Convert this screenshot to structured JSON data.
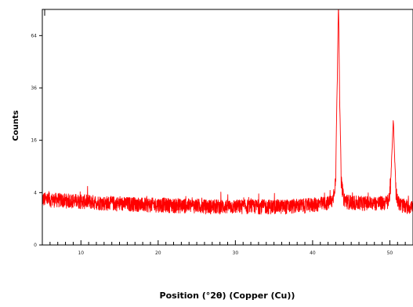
{
  "chart_data": {
    "type": "line",
    "xlabel": "Position (°2θ) (Copper (Cu))",
    "ylabel": "Counts",
    "xlim": [
      5,
      53
    ],
    "y_scale": "sqrt",
    "ylim": [
      0,
      81
    ],
    "x_ticks": [
      10,
      20,
      30,
      40,
      50
    ],
    "y_ticks": [
      0,
      4,
      16,
      36,
      64
    ],
    "grid": false,
    "line_color": "#ff0000",
    "series": [
      {
        "values_description": "XRD pattern",
        "x": [
          5,
          6,
          7,
          8,
          9,
          10,
          11,
          12,
          13,
          14,
          15,
          16,
          17,
          18,
          19,
          20,
          21,
          22,
          23,
          24,
          25,
          26,
          27,
          28,
          29,
          30,
          31,
          32,
          33,
          34,
          35,
          36,
          37,
          38,
          39,
          40,
          41,
          42,
          42.6,
          43.0,
          43.2,
          43.35,
          43.5,
          43.7,
          44.0,
          44.5,
          45,
          46,
          47,
          48,
          49,
          49.8,
          50.1,
          50.3,
          50.45,
          50.6,
          50.8,
          51.2,
          52,
          53
        ],
        "y": [
          3.1,
          3.0,
          3.0,
          2.9,
          2.9,
          2.8,
          2.8,
          2.7,
          2.6,
          2.6,
          2.5,
          2.5,
          2.5,
          2.4,
          2.4,
          2.4,
          2.4,
          2.3,
          2.3,
          2.3,
          2.3,
          2.2,
          2.2,
          2.2,
          2.2,
          2.2,
          2.2,
          2.2,
          2.2,
          2.2,
          2.2,
          2.2,
          2.2,
          2.3,
          2.3,
          2.4,
          2.5,
          2.6,
          2.9,
          6.0,
          40.0,
          88.0,
          30.0,
          6.0,
          3.2,
          2.8,
          2.7,
          2.6,
          2.6,
          2.6,
          2.6,
          2.7,
          4.5,
          14.0,
          23.0,
          12.0,
          4.0,
          2.5,
          2.2,
          2.2
        ]
      }
    ]
  }
}
